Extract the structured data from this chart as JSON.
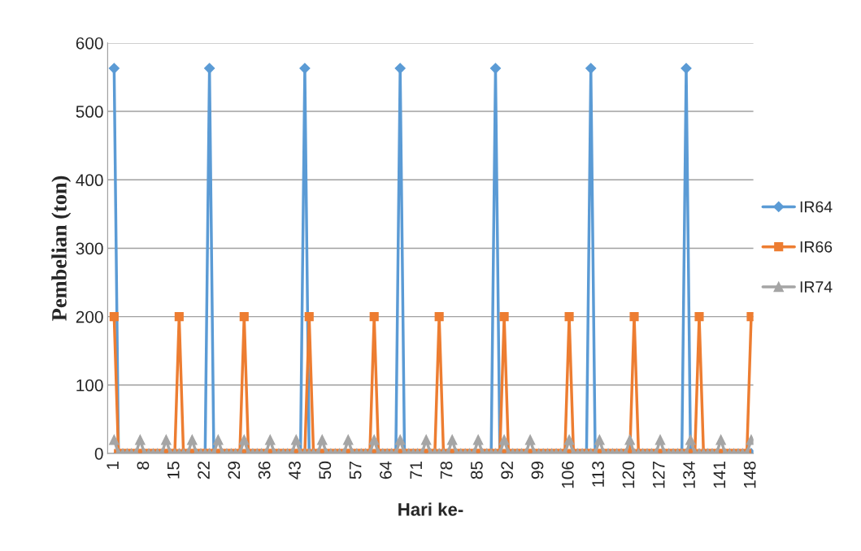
{
  "chart_data": {
    "type": "line",
    "xlabel": "Hari ke-",
    "ylabel": "Pembelian (ton)",
    "categories": [
      "1",
      null,
      null,
      null,
      null,
      null,
      null,
      "8",
      null,
      null,
      null,
      null,
      null,
      null,
      "15",
      null,
      null,
      null,
      null,
      null,
      null,
      "22",
      null,
      null,
      null,
      null,
      null,
      null,
      "29",
      null,
      null,
      null,
      null,
      null,
      null,
      "36",
      null,
      null,
      null,
      null,
      null,
      null,
      "43",
      null,
      null,
      null,
      null,
      null,
      null,
      "50",
      null,
      null,
      null,
      null,
      null,
      null,
      "57",
      null,
      null,
      null,
      null,
      null,
      null,
      "64",
      null,
      null,
      null,
      null,
      null,
      null,
      "71",
      null,
      null,
      null,
      null,
      null,
      null,
      "78",
      null,
      null,
      null,
      null,
      null,
      null,
      "85",
      null,
      null,
      null,
      null,
      null,
      null,
      "92",
      null,
      null,
      null,
      null,
      null,
      null,
      "99",
      null,
      null,
      null,
      null,
      null,
      null,
      "106",
      null,
      null,
      null,
      null,
      null,
      null,
      "113",
      null,
      null,
      null,
      null,
      null,
      null,
      "120",
      null,
      null,
      null,
      null,
      null,
      null,
      "127",
      null,
      null,
      null,
      null,
      null,
      null,
      "134",
      null,
      null,
      null,
      null,
      null,
      null,
      "141",
      null,
      null,
      null,
      null,
      null,
      null,
      "148"
    ],
    "series": [
      {
        "name": "IR64",
        "color": "#5b9bd5",
        "marker": "diamond",
        "values": [
          563,
          0,
          null,
          null,
          null,
          null,
          null,
          null,
          null,
          null,
          null,
          null,
          null,
          null,
          null,
          null,
          null,
          null,
          null,
          null,
          null,
          0,
          563,
          0,
          null,
          null,
          null,
          null,
          null,
          null,
          null,
          null,
          null,
          null,
          null,
          null,
          null,
          null,
          null,
          null,
          null,
          null,
          null,
          0,
          563,
          0,
          null,
          null,
          null,
          null,
          null,
          null,
          null,
          null,
          null,
          null,
          null,
          null,
          null,
          null,
          null,
          null,
          null,
          null,
          null,
          0,
          563,
          0,
          null,
          null,
          null,
          null,
          null,
          null,
          null,
          null,
          null,
          null,
          null,
          null,
          null,
          null,
          null,
          null,
          null,
          null,
          null,
          0,
          563,
          0,
          null,
          null,
          null,
          null,
          null,
          null,
          null,
          null,
          null,
          null,
          null,
          null,
          null,
          null,
          null,
          null,
          null,
          null,
          null,
          0,
          563,
          0,
          null,
          null,
          null,
          null,
          null,
          null,
          null,
          null,
          null,
          null,
          null,
          null,
          null,
          null,
          null,
          null,
          null,
          null,
          null,
          0,
          563,
          0,
          null,
          null,
          null,
          null,
          null,
          null,
          null,
          null,
          null,
          null,
          null,
          null,
          null,
          0
        ]
      },
      {
        "name": "IR66",
        "color": "#ed7d31",
        "marker": "square",
        "values": [
          200,
          0,
          0,
          0,
          0,
          0,
          0,
          0,
          0,
          0,
          0,
          0,
          0,
          0,
          0,
          200,
          0,
          0,
          0,
          0,
          0,
          0,
          0,
          0,
          0,
          0,
          0,
          0,
          0,
          0,
          200,
          0,
          0,
          0,
          0,
          0,
          0,
          0,
          0,
          0,
          0,
          0,
          0,
          0,
          0,
          200,
          0,
          0,
          0,
          0,
          0,
          0,
          0,
          0,
          0,
          0,
          0,
          0,
          0,
          0,
          200,
          0,
          0,
          0,
          0,
          0,
          0,
          0,
          0,
          0,
          0,
          0,
          0,
          0,
          0,
          200,
          0,
          0,
          0,
          0,
          0,
          0,
          0,
          0,
          0,
          0,
          0,
          0,
          0,
          0,
          200,
          0,
          0,
          0,
          0,
          0,
          0,
          0,
          0,
          0,
          0,
          0,
          0,
          0,
          0,
          200,
          0,
          0,
          0,
          0,
          0,
          0,
          0,
          0,
          0,
          0,
          0,
          0,
          0,
          0,
          200,
          0,
          0,
          0,
          0,
          0,
          0,
          0,
          0,
          0,
          0,
          0,
          0,
          0,
          0,
          200,
          0,
          0,
          0,
          0,
          0,
          0,
          0,
          0,
          0,
          0,
          0,
          200
        ]
      },
      {
        "name": "IR74",
        "color": "#a5a5a5",
        "marker": "triangle",
        "values": [
          20,
          0,
          0,
          0,
          0,
          0,
          20,
          0,
          0,
          0,
          0,
          0,
          20,
          0,
          0,
          0,
          0,
          0,
          20,
          0,
          0,
          0,
          0,
          0,
          20,
          0,
          0,
          0,
          0,
          0,
          20,
          0,
          0,
          0,
          0,
          0,
          20,
          0,
          0,
          0,
          0,
          0,
          20,
          0,
          0,
          0,
          0,
          0,
          20,
          0,
          0,
          0,
          0,
          0,
          20,
          0,
          0,
          0,
          0,
          0,
          20,
          0,
          0,
          0,
          0,
          0,
          20,
          0,
          0,
          0,
          0,
          0,
          20,
          0,
          0,
          0,
          0,
          0,
          20,
          0,
          0,
          0,
          0,
          0,
          20,
          0,
          0,
          0,
          0,
          0,
          20,
          0,
          0,
          0,
          0,
          0,
          20,
          0,
          0,
          0,
          0,
          0,
          0,
          0,
          0,
          20,
          0,
          0,
          0,
          0,
          0,
          0,
          20,
          0,
          0,
          0,
          0,
          0,
          0,
          20,
          0,
          0,
          0,
          0,
          0,
          0,
          20,
          0,
          0,
          0,
          0,
          0,
          0,
          20,
          0,
          0,
          0,
          0,
          0,
          0,
          20,
          0,
          0,
          0,
          0,
          0,
          0,
          20
        ]
      }
    ],
    "ylim": [
      0,
      600
    ],
    "yticks": [
      0,
      100,
      200,
      300,
      400,
      500,
      600
    ],
    "grid": "y",
    "legend": "right",
    "line_style": "solid"
  }
}
